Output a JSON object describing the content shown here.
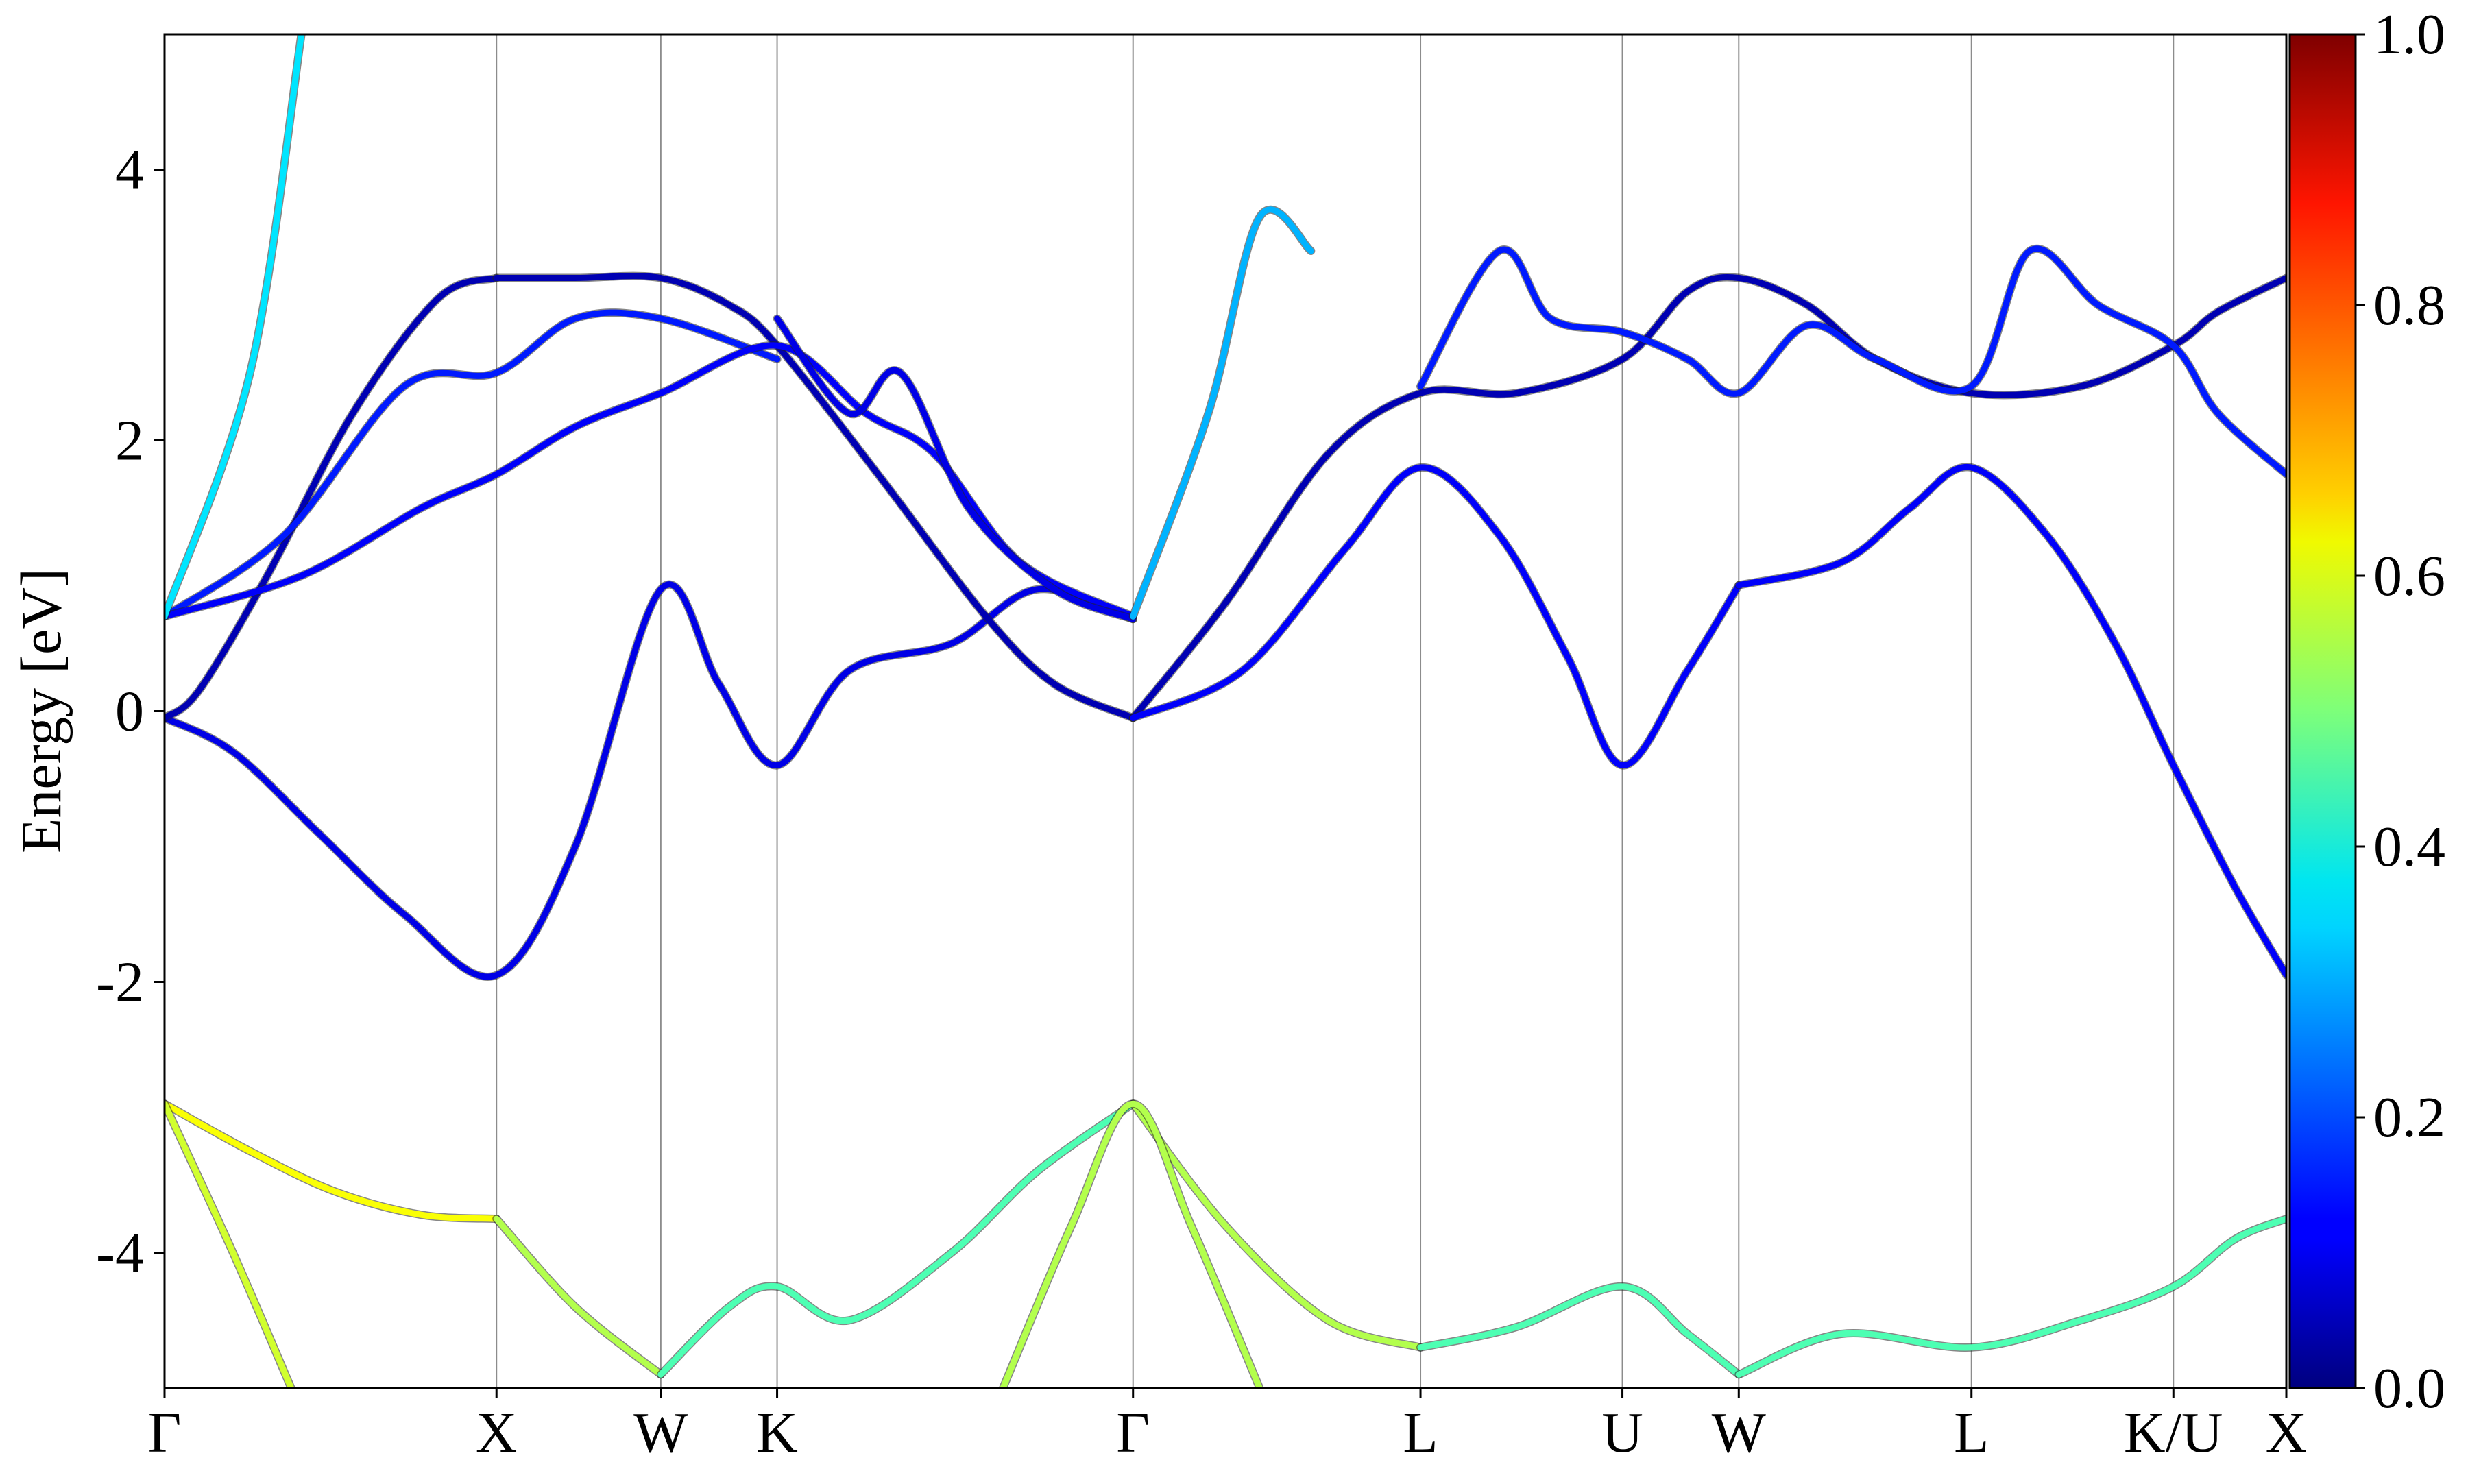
{
  "chart_data": {
    "type": "line",
    "title": "",
    "xlabel": "",
    "ylabel": "Energy [eV]",
    "ylim": [
      -5,
      5
    ],
    "yticks": [
      -4,
      -2,
      0,
      2,
      4
    ],
    "ytick_labels": [
      "-4",
      "-2",
      "0",
      "2",
      "4"
    ],
    "xlim": [
      0,
      6.2
    ],
    "kpoints": [
      {
        "label": "Γ",
        "x": 0.0
      },
      {
        "label": "X",
        "x": 0.97
      },
      {
        "label": "W",
        "x": 1.45
      },
      {
        "label": "K",
        "x": 1.79
      },
      {
        "label": "Γ",
        "x": 2.83
      },
      {
        "label": "L",
        "x": 3.67
      },
      {
        "label": "U",
        "x": 4.26
      },
      {
        "label": "W",
        "x": 4.6
      },
      {
        "label": "L",
        "x": 5.28
      },
      {
        "label": "K/U",
        "x": 5.87
      },
      {
        "label": "X",
        "x": 6.2
      }
    ],
    "grid": "vertical lines at high-symmetry points",
    "colorbar": {
      "colormap": "jet",
      "range": [
        0,
        1
      ],
      "ticks": [
        "0.0",
        "0.2",
        "0.4",
        "0.6",
        "0.8",
        "1.0"
      ]
    },
    "series": [
      {
        "color_value": 0.1,
        "x": [
          0,
          0.2,
          0.45,
          0.7,
          0.97,
          1.2,
          1.45,
          1.62,
          1.79,
          2.0,
          2.3,
          2.55,
          2.83
        ],
        "y": [
          -0.05,
          -0.3,
          -0.9,
          -1.5,
          -1.95,
          -1.0,
          0.9,
          0.2,
          -0.4,
          0.3,
          0.5,
          0.9,
          0.68
        ]
      },
      {
        "color_value": 0.05,
        "x": [
          0,
          0.1,
          0.3,
          0.55,
          0.8,
          0.97
        ],
        "y": [
          -0.05,
          0.15,
          1.0,
          2.2,
          3.05,
          3.2
        ]
      },
      {
        "color_value": 0.05,
        "x": [
          0.97,
          1.2,
          1.45,
          1.65,
          1.79,
          2.1,
          2.4,
          2.6,
          2.83
        ],
        "y": [
          3.2,
          3.2,
          3.2,
          3.0,
          2.7,
          1.7,
          0.7,
          0.2,
          -0.05
        ]
      },
      {
        "color_value": 0.05,
        "x": [
          2.83,
          3.1,
          3.4,
          3.67,
          3.95,
          4.26,
          4.45,
          4.6,
          4.8,
          5.0,
          5.28,
          5.6,
          5.87,
          6.0,
          6.2
        ],
        "y": [
          -0.05,
          0.8,
          1.9,
          2.35,
          2.35,
          2.6,
          3.1,
          3.2,
          3.0,
          2.6,
          2.35,
          2.4,
          2.7,
          2.95,
          3.2
        ]
      },
      {
        "color_value": 0.15,
        "x": [
          0,
          0.35,
          0.7,
          0.97,
          1.2,
          1.45,
          1.79
        ],
        "y": [
          0.7,
          1.3,
          2.4,
          2.5,
          2.9,
          2.9,
          2.6
        ]
      },
      {
        "color_value": 0.12,
        "x": [
          0,
          0.4,
          0.75,
          0.97,
          1.2,
          1.45,
          1.79,
          2.05,
          2.25,
          2.5,
          2.83
        ],
        "y": [
          0.7,
          1.0,
          1.5,
          1.75,
          2.1,
          2.35,
          2.7,
          2.2,
          1.9,
          1.1,
          0.7
        ]
      },
      {
        "color_value": 0.1,
        "x": [
          1.79,
          2.0,
          2.15,
          2.35,
          2.6,
          2.83
        ],
        "y": [
          2.9,
          2.2,
          2.5,
          1.5,
          0.9,
          0.68
        ]
      },
      {
        "color_value": 0.12,
        "x": [
          2.83,
          3.15,
          3.45,
          3.67,
          3.9,
          4.1,
          4.26,
          4.45,
          4.6
        ],
        "y": [
          -0.05,
          0.3,
          1.2,
          1.8,
          1.3,
          0.4,
          -0.4,
          0.3,
          0.93
        ]
      },
      {
        "color_value": 0.12,
        "x": [
          4.6,
          4.9,
          5.1,
          5.28,
          5.5,
          5.7,
          5.87,
          6.05,
          6.2
        ],
        "y": [
          0.93,
          1.1,
          1.5,
          1.8,
          1.3,
          0.5,
          -0.4,
          -1.3,
          -1.95
        ]
      },
      {
        "color_value": 0.15,
        "x": [
          3.67,
          3.9,
          4.05,
          4.26,
          4.45,
          4.6,
          4.8,
          5.0,
          5.28,
          5.45,
          5.65,
          5.87,
          6.0,
          6.2
        ],
        "y": [
          2.4,
          3.4,
          2.9,
          2.8,
          2.6,
          2.35,
          2.85,
          2.6,
          2.4,
          3.4,
          3.0,
          2.7,
          2.2,
          1.75
        ]
      },
      {
        "color_value": 0.35,
        "x": [
          0,
          0.25,
          0.4
        ],
        "y": [
          0.7,
          2.5,
          5.0
        ]
      },
      {
        "color_value": 0.3,
        "x": [
          2.83,
          3.05,
          3.2,
          3.35
        ],
        "y": [
          0.7,
          2.2,
          3.65,
          3.4
        ]
      },
      {
        "color_value": 0.62,
        "x": [
          0,
          0.25,
          0.5,
          0.75,
          0.97
        ],
        "y": [
          -2.9,
          -3.25,
          -3.55,
          -3.72,
          -3.75
        ]
      },
      {
        "color_value": 0.55,
        "x": [
          0.97,
          1.2,
          1.45
        ],
        "y": [
          -3.75,
          -4.4,
          -4.9
        ]
      },
      {
        "color_value": 0.45,
        "x": [
          1.45,
          1.65,
          1.79,
          2.0,
          2.3,
          2.55,
          2.83
        ],
        "y": [
          -4.9,
          -4.4,
          -4.25,
          -4.5,
          -4.0,
          -3.4,
          -2.9
        ]
      },
      {
        "color_value": 0.55,
        "x": [
          2.83,
          3.1,
          3.4,
          3.67
        ],
        "y": [
          -2.9,
          -3.8,
          -4.5,
          -4.7
        ]
      },
      {
        "color_value": 0.45,
        "x": [
          3.67,
          3.95,
          4.26,
          4.45,
          4.6
        ],
        "y": [
          -4.7,
          -4.55,
          -4.25,
          -4.6,
          -4.9
        ]
      },
      {
        "color_value": 0.45,
        "x": [
          4.6,
          4.9,
          5.28,
          5.6,
          5.87,
          6.05,
          6.2
        ],
        "y": [
          -4.9,
          -4.6,
          -4.7,
          -4.5,
          -4.25,
          -3.9,
          -3.75
        ]
      },
      {
        "color_value": 0.58,
        "x": [
          0,
          0.2,
          0.37
        ],
        "y": [
          -2.9,
          -4.0,
          -5.0
        ]
      },
      {
        "color_value": 0.55,
        "x": [
          2.45,
          2.65,
          2.83,
          3.0,
          3.2
        ],
        "y": [
          -5.0,
          -3.8,
          -2.9,
          -3.8,
          -5.0
        ]
      }
    ]
  }
}
